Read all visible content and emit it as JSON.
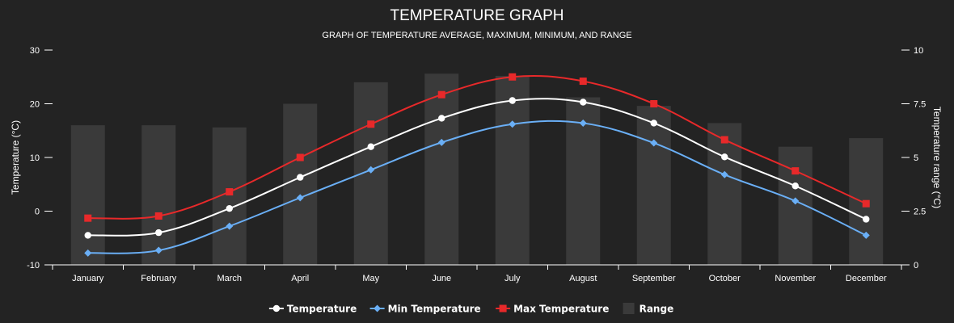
{
  "chart_data": {
    "type": "line",
    "title": "TEMPERATURE GRAPH",
    "subtitle": "GRAPH OF TEMPERATURE AVERAGE, MAXIMUM, MINIMUM, AND RANGE",
    "categories": [
      "January",
      "February",
      "March",
      "April",
      "May",
      "June",
      "July",
      "August",
      "September",
      "October",
      "November",
      "December"
    ],
    "y_left": {
      "label": "Temperature (°C)",
      "range": [
        -10,
        30
      ],
      "ticks": [
        "-10",
        "0",
        "10",
        "20",
        "30"
      ]
    },
    "y_right": {
      "label": "Temperature range (°C)",
      "range": [
        0,
        10
      ],
      "ticks": [
        "0",
        "2.5",
        "5",
        "7.5",
        "10"
      ]
    },
    "series": [
      {
        "name": "Temperature",
        "axis": "left",
        "type": "line",
        "marker": "circle",
        "color": "#ffffff",
        "values": [
          -4.5,
          -4.0,
          0.5,
          6.3,
          12.0,
          17.3,
          20.6,
          20.3,
          16.4,
          10.1,
          4.7,
          -1.5
        ]
      },
      {
        "name": "Min Temperature",
        "axis": "left",
        "type": "line",
        "marker": "diamond",
        "color": "#6aaff6",
        "values": [
          -7.8,
          -7.3,
          -2.8,
          2.5,
          7.7,
          12.8,
          16.2,
          16.4,
          12.7,
          6.8,
          1.9,
          -4.5
        ]
      },
      {
        "name": "Max Temperature",
        "axis": "left",
        "type": "line",
        "marker": "square",
        "color": "#e8292a",
        "values": [
          -1.3,
          -0.9,
          3.6,
          10.0,
          16.2,
          21.7,
          25.0,
          24.2,
          20.0,
          13.3,
          7.5,
          1.4
        ]
      },
      {
        "name": "Range",
        "axis": "right",
        "type": "bar",
        "color": "#3a3a3a",
        "values": [
          6.5,
          6.5,
          6.4,
          7.5,
          8.5,
          8.9,
          8.8,
          7.8,
          7.4,
          6.6,
          5.5,
          5.9
        ]
      }
    ],
    "legend": {
      "position": "bottom-center",
      "items": [
        "Temperature",
        "Min Temperature",
        "Max Temperature",
        "Range"
      ]
    },
    "grid": false
  }
}
